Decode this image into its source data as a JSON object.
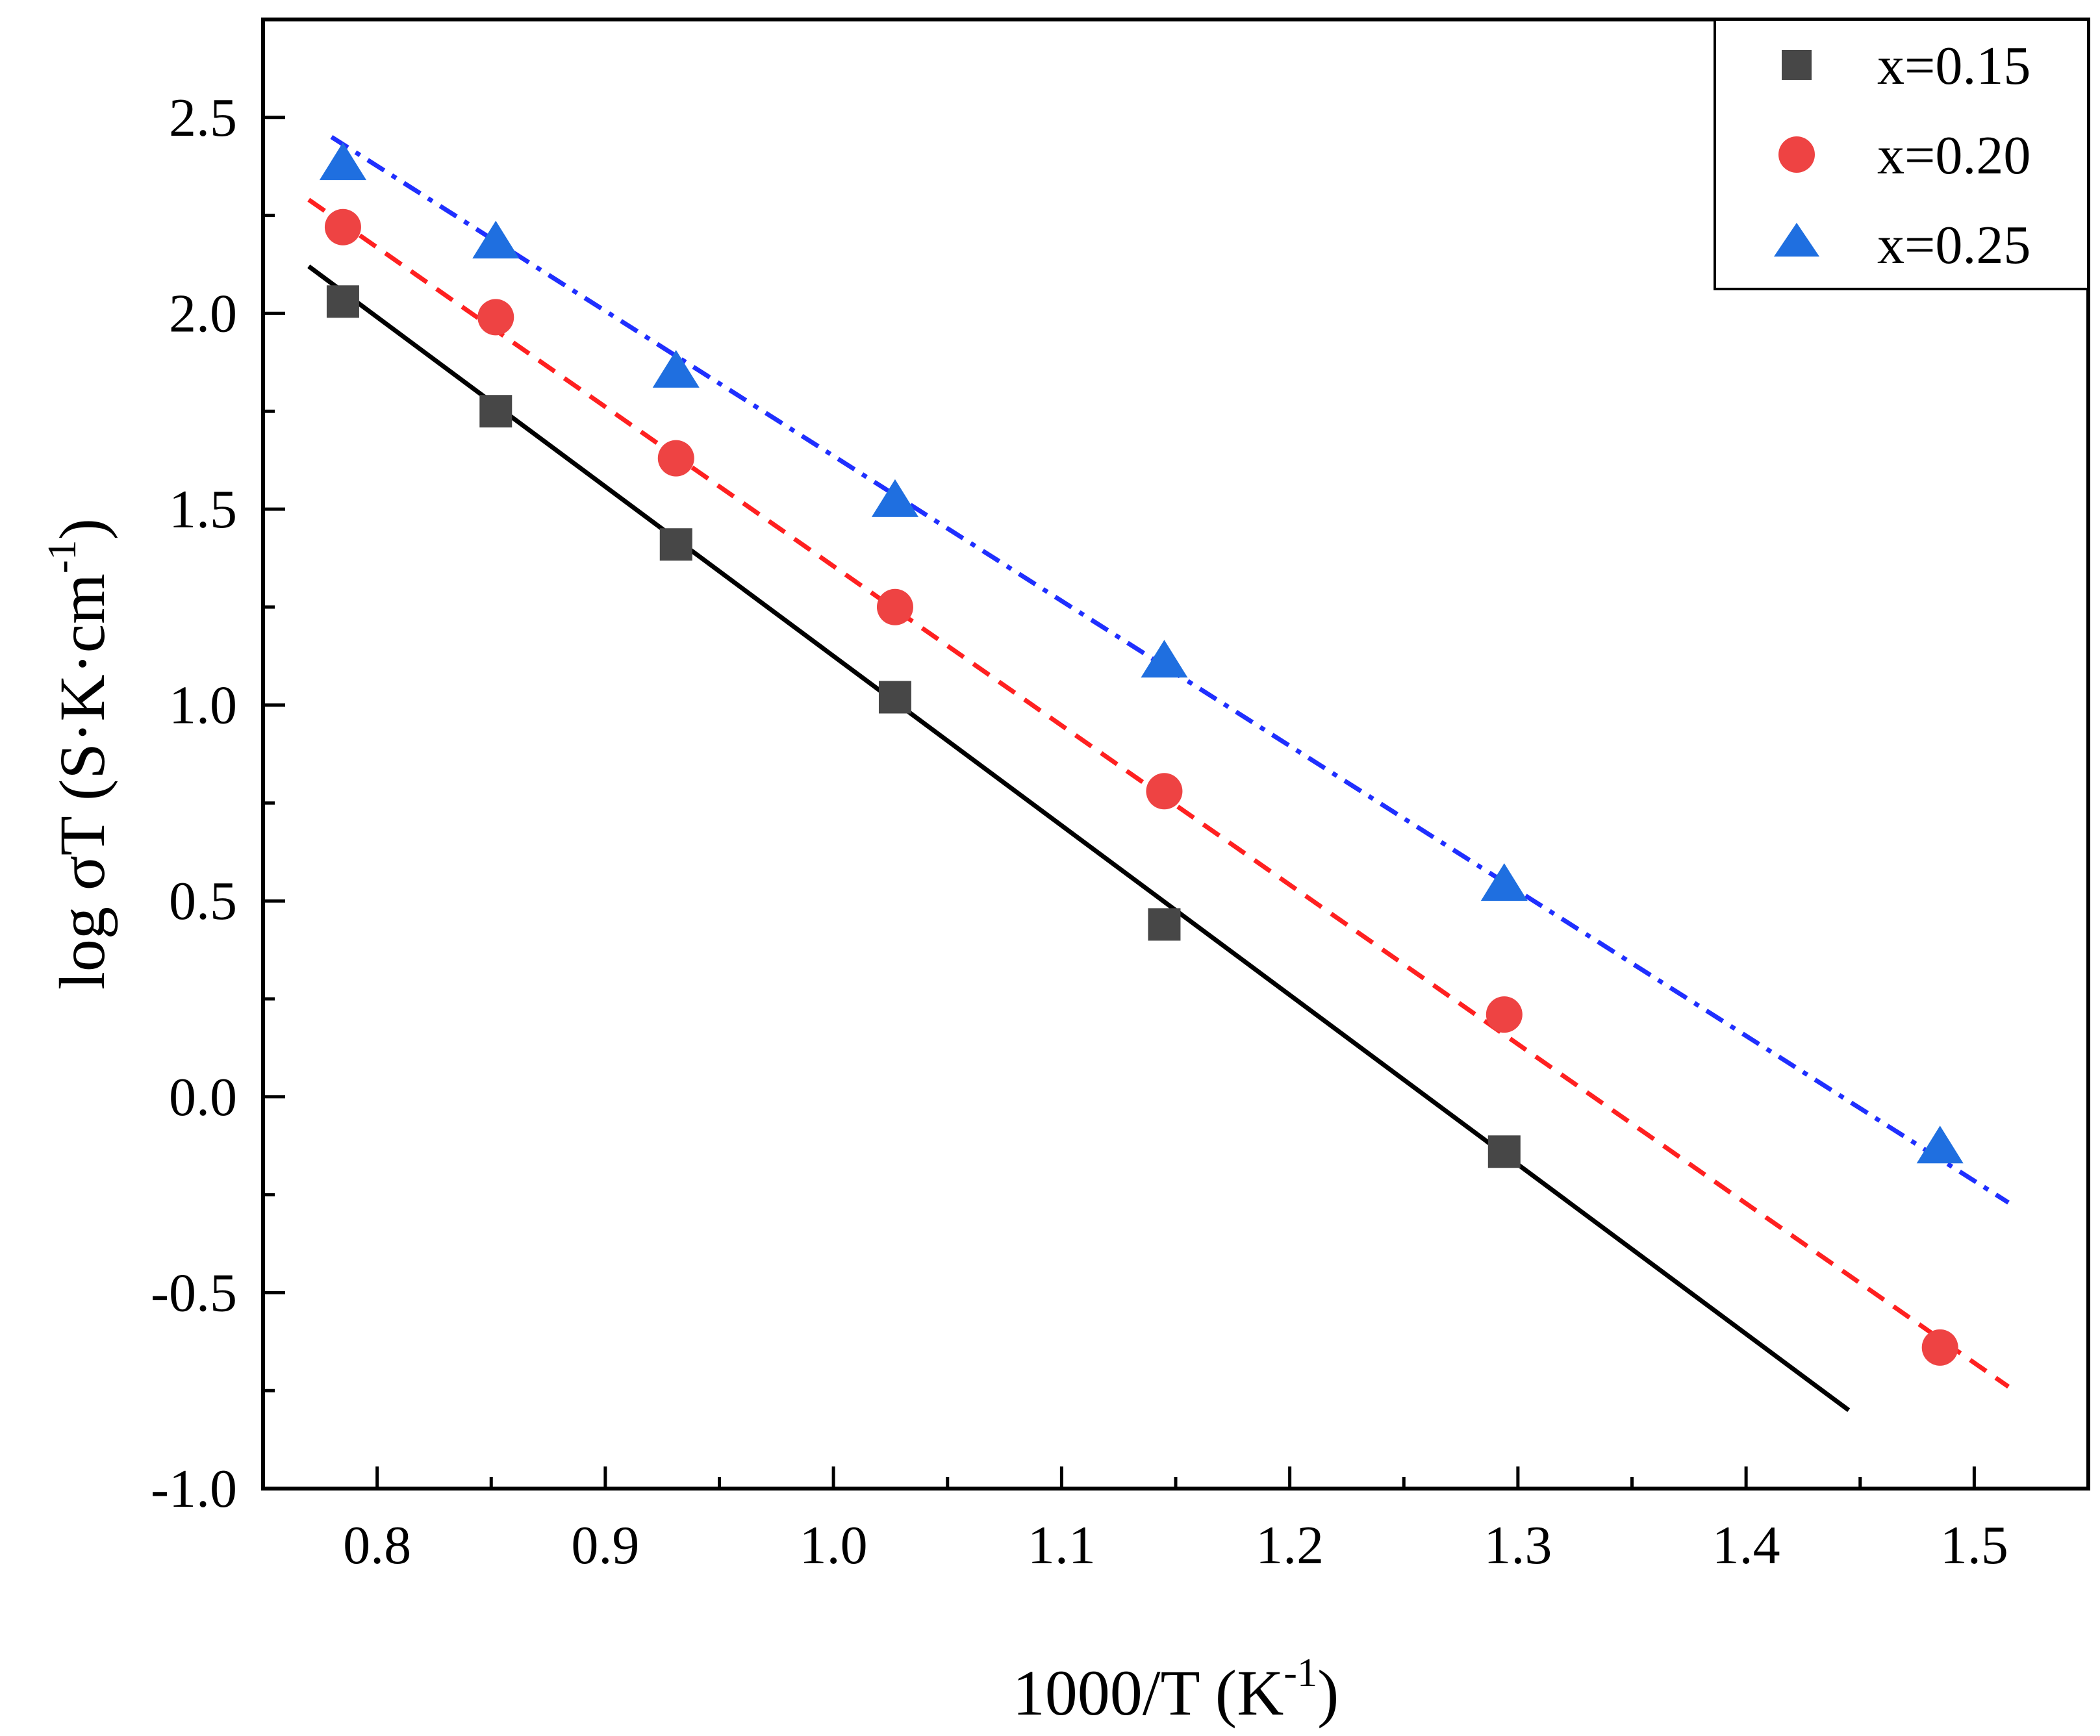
{
  "chart_data": {
    "type": "scatter",
    "title": "",
    "xlabel": {
      "main": "1000/T (K",
      "sup": "-1",
      "end": ")"
    },
    "ylabel": {
      "main": "log σT (S·K·cm",
      "sup": "-1",
      "end": ")"
    },
    "xlim": [
      0.75,
      1.55
    ],
    "ylim": [
      -1.0,
      2.75
    ],
    "xticks": [
      0.8,
      0.9,
      1.0,
      1.1,
      1.2,
      1.3,
      1.4,
      1.5
    ],
    "xtick_labels": [
      "0.8",
      "0.9",
      "1.0",
      "1.1",
      "1.2",
      "1.3",
      "1.4",
      "1.5"
    ],
    "yticks": [
      -1.0,
      -0.5,
      0.0,
      0.5,
      1.0,
      1.5,
      2.0,
      2.5
    ],
    "ytick_labels": [
      "-1.0",
      "-0.5",
      "0.0",
      "0.5",
      "1.0",
      "1.5",
      "2.0",
      "2.5"
    ],
    "grid": false,
    "legend_position": "top-right",
    "series": [
      {
        "name": "x=0.15",
        "color": "#474747",
        "marker": "square",
        "line_style": "solid",
        "line_color": "#000000",
        "x": [
          0.785,
          0.852,
          0.931,
          1.027,
          1.145,
          1.294
        ],
        "y": [
          2.03,
          1.75,
          1.41,
          1.02,
          0.44,
          -0.14
        ],
        "fit": {
          "x": [
            0.77,
            1.445
          ],
          "y": [
            2.12,
            -0.8
          ]
        }
      },
      {
        "name": "x=0.20",
        "color": "#ee4343",
        "marker": "circle",
        "line_style": "dashed",
        "line_color": "#ff2020",
        "x": [
          0.785,
          0.852,
          0.931,
          1.027,
          1.145,
          1.294,
          1.485
        ],
        "y": [
          2.22,
          1.99,
          1.63,
          1.25,
          0.78,
          0.21,
          -0.64
        ],
        "fit": {
          "x": [
            0.77,
            1.515
          ],
          "y": [
            2.29,
            -0.74
          ]
        }
      },
      {
        "name": "x=0.25",
        "color": "#1f6fe0",
        "marker": "triangle",
        "line_style": "dashdot",
        "line_color": "#1f2fff",
        "x": [
          0.785,
          0.852,
          0.931,
          1.027,
          1.145,
          1.294,
          1.485
        ],
        "y": [
          2.38,
          2.18,
          1.85,
          1.52,
          1.11,
          0.54,
          -0.13
        ],
        "fit": {
          "x": [
            0.78,
            1.515
          ],
          "y": [
            2.45,
            -0.27
          ]
        }
      }
    ]
  }
}
